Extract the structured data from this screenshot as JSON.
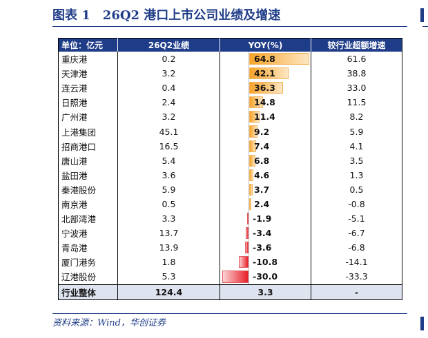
{
  "title": "图表 1　26Q2 港口上市公司业绩及增速",
  "headers": [
    "单位：亿元",
    "26Q2业绩",
    "YOY(%)",
    "较行业超额增速"
  ],
  "rows": [
    {
      "name": "重庆港",
      "profit": "0.2",
      "yoy": 64.8,
      "yoy_label": "64.8",
      "excess": "61.6"
    },
    {
      "name": "天津港",
      "profit": "3.2",
      "yoy": 42.1,
      "yoy_label": "42.1",
      "excess": "38.8"
    },
    {
      "name": "连云港",
      "profit": "0.4",
      "yoy": 36.3,
      "yoy_label": "36.3",
      "excess": "33.0"
    },
    {
      "name": "日照港",
      "profit": "2.4",
      "yoy": 14.8,
      "yoy_label": "14.8",
      "excess": "11.5"
    },
    {
      "name": "广州港",
      "profit": "3.2",
      "yoy": 11.4,
      "yoy_label": "11.4",
      "excess": "8.2"
    },
    {
      "name": "上港集团",
      "profit": "45.1",
      "yoy": 9.2,
      "yoy_label": "9.2",
      "excess": "5.9"
    },
    {
      "name": "招商港口",
      "profit": "16.5",
      "yoy": 7.4,
      "yoy_label": "7.4",
      "excess": "4.1"
    },
    {
      "name": "唐山港",
      "profit": "5.4",
      "yoy": 6.8,
      "yoy_label": "6.8",
      "excess": "3.5"
    },
    {
      "name": "盐田港",
      "profit": "3.6",
      "yoy": 4.6,
      "yoy_label": "4.6",
      "excess": "1.3"
    },
    {
      "name": "秦港股份",
      "profit": "5.9",
      "yoy": 3.7,
      "yoy_label": "3.7",
      "excess": "0.5"
    },
    {
      "name": "南京港",
      "profit": "0.5",
      "yoy": 2.4,
      "yoy_label": "2.4",
      "excess": "-0.8"
    },
    {
      "name": "北部湾港",
      "profit": "3.3",
      "yoy": -1.9,
      "yoy_label": "-1.9",
      "excess": "-5.1"
    },
    {
      "name": "宁波港",
      "profit": "13.7",
      "yoy": -3.4,
      "yoy_label": "-3.4",
      "excess": "-6.7"
    },
    {
      "name": "青岛港",
      "profit": "13.9",
      "yoy": -3.6,
      "yoy_label": "-3.6",
      "excess": "-6.8"
    },
    {
      "name": "厦门港务",
      "profit": "1.8",
      "yoy": -10.8,
      "yoy_label": "-10.8",
      "excess": "-14.1"
    },
    {
      "name": "辽港股份",
      "profit": "5.3",
      "yoy": -30.0,
      "yoy_label": "-30.0",
      "excess": "-33.3"
    }
  ],
  "total": {
    "name": "行业整体",
    "profit": "124.4",
    "yoy_label": "3.3",
    "excess": "-"
  },
  "source": "资料来源：Wind，华创证券",
  "colors": {
    "brand": "#1f3c88",
    "positive_bar": "#f7a42a",
    "negative_bar": "#e8202a",
    "total_row": "#dde3ef"
  },
  "yoy_range": [
    -30.0,
    64.8
  ]
}
